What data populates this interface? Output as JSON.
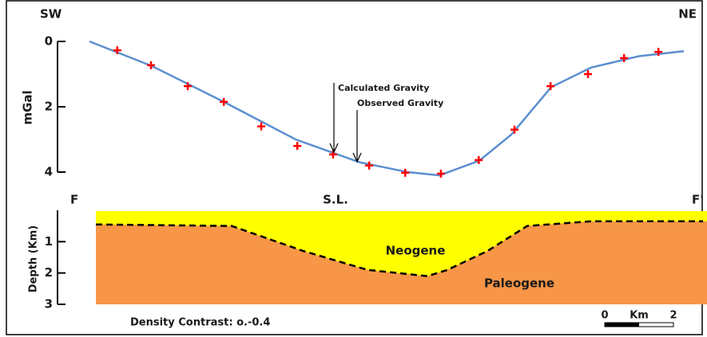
{
  "chart_data": [
    {
      "type": "line",
      "labels": {
        "left": "SW",
        "right": "NE"
      },
      "ylabel": "mGal",
      "ylim": [
        0,
        4
      ],
      "yticks": [
        0,
        2,
        4
      ],
      "y_inverted": true,
      "xlim": [
        0,
        17.3
      ],
      "series": [
        {
          "name": "Calculated Gravity",
          "type": "line",
          "color": "#5b8fd0",
          "x": [
            0,
            1.81,
            3.91,
            6.0,
            7.86,
            9.26,
            10.19,
            11.35,
            12.28,
            13.44,
            14.6,
            16.0,
            17.3
          ],
          "values": [
            0.0,
            0.75,
            1.85,
            3.0,
            3.7,
            4.0,
            4.1,
            3.65,
            2.85,
            1.4,
            0.8,
            0.45,
            0.3
          ]
        },
        {
          "name": "Observed Gravity",
          "type": "scatter",
          "color": "#ff0000",
          "x": [
            0.81,
            1.79,
            2.86,
            3.91,
            5.0,
            6.05,
            7.09,
            8.14,
            9.19,
            10.23,
            11.33,
            12.37,
            13.42,
            14.51,
            15.56,
            16.56
          ],
          "values": [
            0.27,
            0.73,
            1.37,
            1.85,
            2.6,
            3.2,
            3.46,
            3.8,
            4.02,
            4.05,
            3.63,
            2.7,
            1.37,
            1.0,
            0.51,
            0.32
          ]
        }
      ]
    },
    {
      "type": "area",
      "labels": {
        "left": "F",
        "center": "S.L.",
        "right": "F'"
      },
      "ylabel": "Depth (Km)",
      "ylim": [
        0,
        3
      ],
      "yticks": [
        1,
        2,
        3
      ],
      "y_inverted": true,
      "xlim": [
        0,
        17.3
      ],
      "layers": [
        {
          "name": "Neogene",
          "color": "#ffff00"
        },
        {
          "name": "Paleogene",
          "color": "#f79646"
        }
      ],
      "boundary": {
        "x": [
          0.19,
          4.14,
          6.23,
          8.09,
          9.84,
          10.42,
          11.58,
          12.74,
          14.6,
          17.86
        ],
        "values": [
          0.45,
          0.5,
          1.3,
          1.9,
          2.1,
          1.9,
          1.3,
          0.5,
          0.35,
          0.35
        ]
      },
      "note": "Density Contrast: o.-0.4",
      "scale_bar": {
        "ticks": [
          0,
          2
        ],
        "unit": "Km"
      }
    }
  ]
}
